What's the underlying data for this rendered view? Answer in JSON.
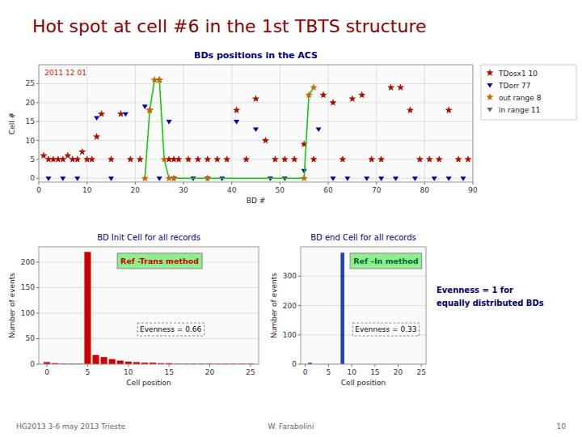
{
  "title": "Hot spot at cell #6 in the 1st TBTS structure",
  "annotations": [
    {
      "text": "Evenness = 1 for",
      "color": "#000066"
    },
    {
      "text": "equally distributed BDs",
      "color": "#000066"
    },
    {
      "text": "HG2013 3-6 may 2013 Trieste"
    },
    {
      "text": "W. Farabolini"
    },
    {
      "text": "10"
    }
  ],
  "chart_data": [
    {
      "type": "scatter",
      "title": "BDs positions in the ACS",
      "x_label": "BD #",
      "y_label": "Cell #",
      "xlim": [
        0,
        90
      ],
      "ylim": [
        -1,
        30
      ],
      "xticks": [
        0,
        10,
        20,
        30,
        40,
        50,
        60,
        70,
        80,
        90
      ],
      "yticks": [
        0,
        5,
        10,
        15,
        20,
        25
      ],
      "grid": true,
      "legend": "upper right",
      "annotations": [
        {
          "text": "2011 12 01",
          "color": "#CC2200"
        }
      ],
      "series": [
        {
          "name": "TDosx1 10",
          "type": "scatter",
          "marker": "star",
          "color": "#AA1100",
          "x": [
            1,
            2,
            3,
            4,
            5,
            6,
            7,
            8,
            9,
            10,
            11,
            12,
            13,
            15,
            17,
            19,
            21,
            23,
            25,
            27,
            28,
            29,
            31,
            33,
            35,
            37,
            39,
            41,
            43,
            45,
            47,
            49,
            51,
            53,
            55,
            57,
            59,
            61,
            63,
            65,
            67,
            69,
            71,
            73,
            75,
            77,
            79,
            81,
            83,
            85,
            87,
            89
          ],
          "values": [
            6,
            5,
            5,
            5,
            5,
            6,
            5,
            5,
            7,
            5,
            5,
            11,
            17,
            5,
            17,
            5,
            5,
            18,
            26,
            5,
            5,
            5,
            5,
            5,
            5,
            5,
            5,
            18,
            5,
            21,
            10,
            5,
            5,
            5,
            9,
            5,
            22,
            20,
            5,
            21,
            22,
            5,
            5,
            24,
            24,
            18,
            5,
            5,
            5,
            18,
            5,
            5
          ]
        },
        {
          "name": "TDorr 77",
          "type": "scatter",
          "marker": "triangle_down",
          "color": "#0000AA",
          "x": [
            2,
            5,
            8,
            12,
            15,
            18,
            22,
            25,
            27,
            28,
            32,
            35,
            38,
            41,
            45,
            48,
            51,
            55,
            58,
            61,
            64,
            68,
            71,
            74,
            78,
            82,
            85,
            88
          ],
          "values": [
            0,
            0,
            0,
            16,
            0,
            17,
            19,
            0,
            15,
            0,
            0,
            0,
            0,
            15,
            13,
            0,
            0,
            2,
            13,
            0,
            0,
            0,
            0,
            0,
            0,
            0,
            0,
            0
          ]
        },
        {
          "type": "line",
          "color": "#00CC00",
          "x": [
            22,
            23,
            24,
            25,
            26,
            27,
            28,
            35,
            55,
            56,
            57
          ],
          "values": [
            0,
            18,
            26,
            26,
            5,
            0,
            0,
            0,
            0,
            22,
            24
          ]
        },
        {
          "name": "out range 8",
          "type": "scatter",
          "marker": "star",
          "color": "#CC6600",
          "x": [
            22,
            23,
            24,
            25,
            26,
            27,
            28,
            35,
            55,
            56,
            57
          ],
          "values": [
            0,
            18,
            26,
            26,
            5,
            0,
            0,
            0,
            0,
            22,
            24
          ]
        },
        {
          "name": "in range 11",
          "type": "scatter",
          "marker": "triangle_down",
          "color": "#666666",
          "x": [],
          "values": []
        }
      ]
    },
    {
      "type": "bar",
      "title": "BD Init Cell for all records",
      "x_label": "Cell position",
      "y_label": "Number of events",
      "x": [
        0,
        1,
        2,
        3,
        4,
        5,
        6,
        7,
        8,
        9,
        10,
        11,
        12,
        13,
        14,
        15,
        16,
        17,
        18,
        19,
        20,
        21,
        22,
        23,
        24,
        25
      ],
      "values": [
        4,
        2,
        1,
        1,
        1,
        220,
        18,
        14,
        10,
        7,
        5,
        4,
        3,
        3,
        2,
        2,
        1,
        1,
        1,
        1,
        1,
        1,
        1,
        1,
        1,
        1
      ],
      "color": "#CC0000",
      "xlim": [
        -1,
        26
      ],
      "ylim": [
        0,
        230
      ],
      "xticks": [
        0,
        5,
        10,
        15,
        20,
        25
      ],
      "yticks": [
        0,
        50,
        100,
        150,
        200
      ],
      "grid": "y",
      "annotations": [
        {
          "text": "Ref -Trans method",
          "color": "#CC0000"
        },
        {
          "text": "Evenness = 0.66"
        }
      ]
    },
    {
      "type": "bar",
      "title": "BD end Cell for all records",
      "x_label": "Cell position",
      "y_label": "Number of events",
      "x": [
        0,
        1,
        2,
        3,
        4,
        5,
        6,
        7,
        8,
        9,
        10,
        11,
        12,
        13,
        14,
        15,
        16,
        17,
        18,
        19,
        20,
        21,
        22,
        23,
        24,
        25
      ],
      "values": [
        0,
        5,
        0,
        0,
        0,
        0,
        0,
        0,
        380,
        0,
        0,
        0,
        0,
        0,
        0,
        0,
        0,
        0,
        0,
        0,
        0,
        0,
        0,
        0,
        0,
        0
      ],
      "color": "#2244BB",
      "xlim": [
        -1,
        26
      ],
      "ylim": [
        0,
        400
      ],
      "xticks": [
        0,
        5,
        10,
        15,
        20,
        25
      ],
      "yticks": [
        0,
        100,
        200,
        300
      ],
      "grid": "y",
      "annotations": [
        {
          "text": "Ref –In method",
          "color": "#006633"
        },
        {
          "text": "Evenness = 0.33"
        }
      ]
    }
  ]
}
